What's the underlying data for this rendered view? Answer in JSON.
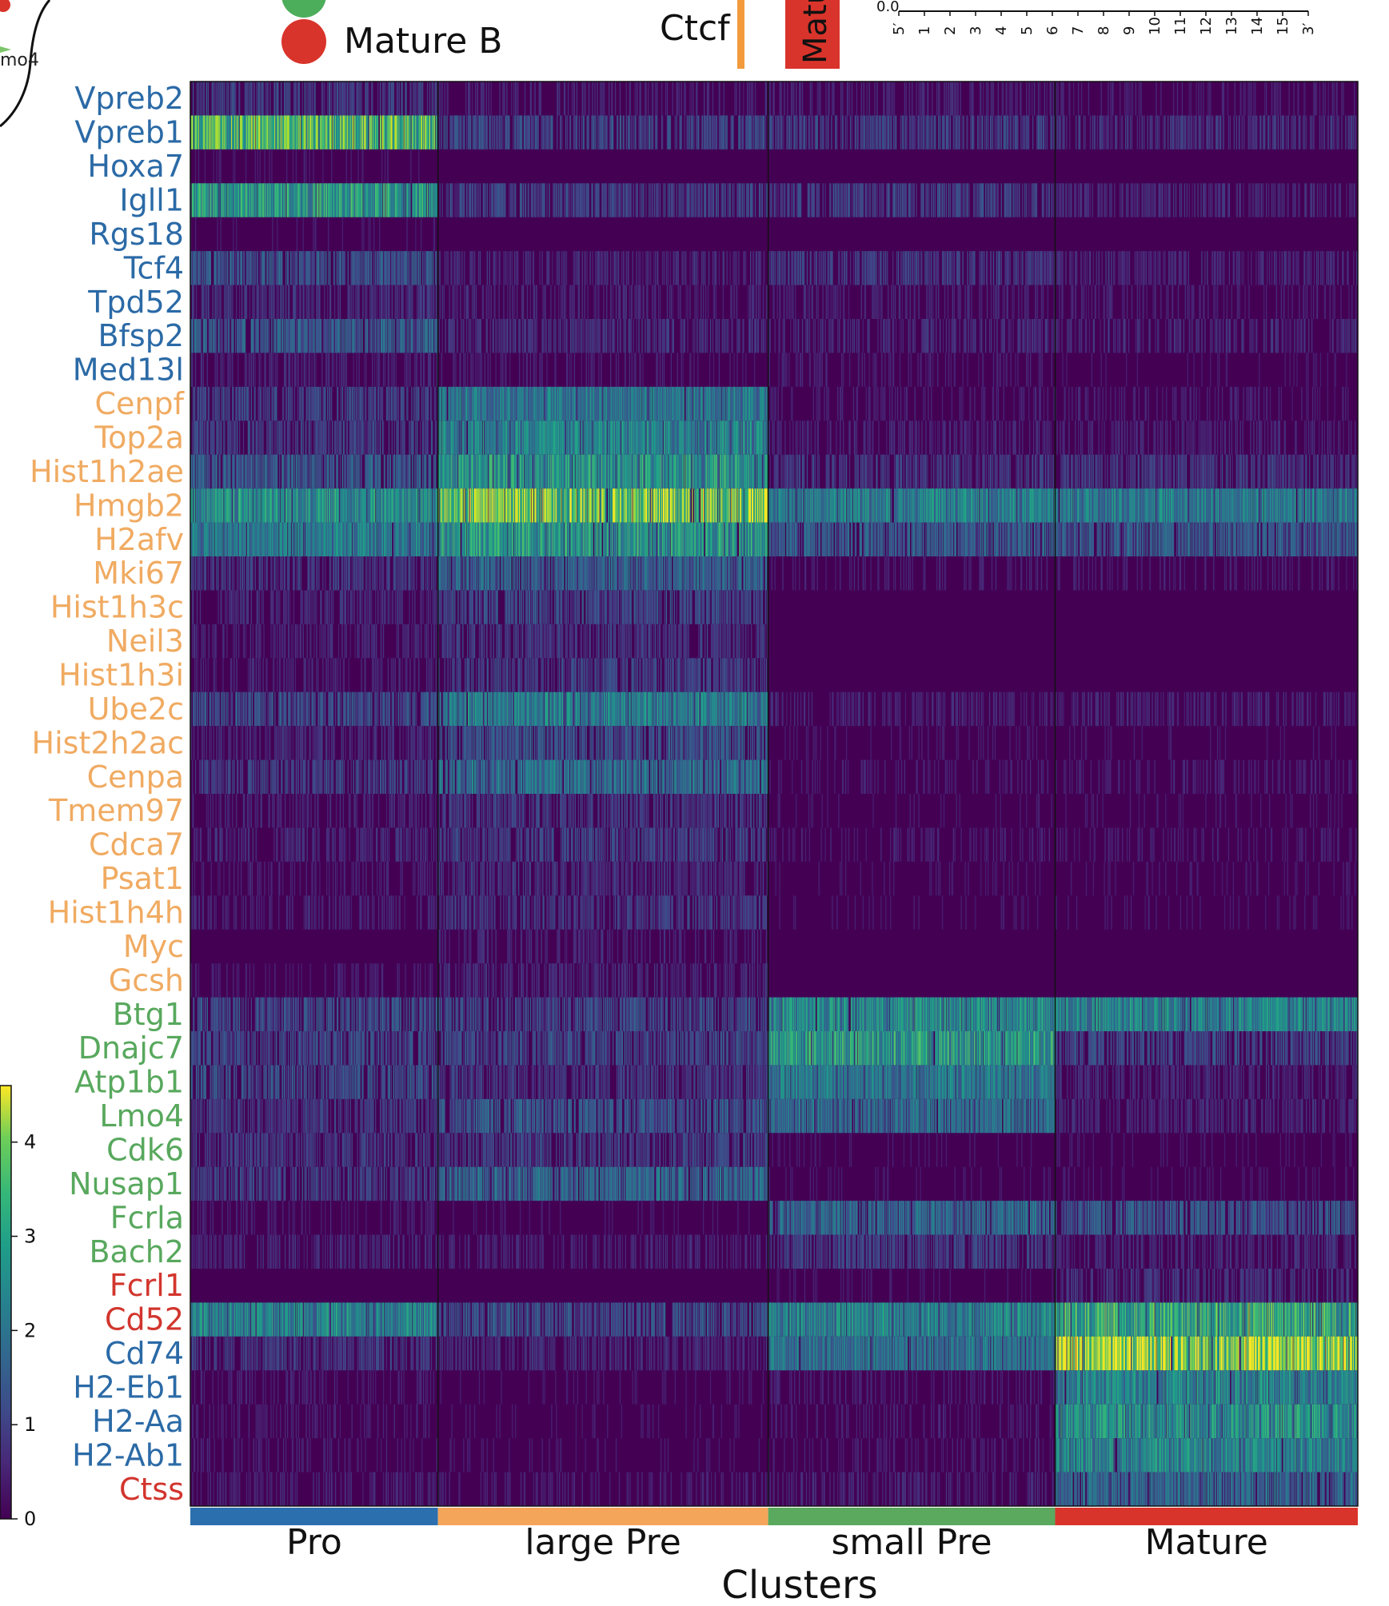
{
  "legend_fragment": {
    "label": "Mature B",
    "partial_label": "mo4",
    "colors": {
      "green": "#4cad5b",
      "red": "#d9342b"
    }
  },
  "motif_fragment": {
    "label": "Ctcf",
    "box_label": "Matu",
    "ytick": "0.0",
    "bar_color": "#f29a3c",
    "box_color": "#d9342b",
    "positions": [
      "5′",
      "1",
      "2",
      "3",
      "4",
      "5",
      "6",
      "7",
      "8",
      "9",
      "10",
      "11",
      "12",
      "13",
      "14",
      "15",
      "3′"
    ]
  },
  "colors": {
    "pro": "#2c6faf",
    "large_pre": "#f5a55a",
    "small_pre": "#5aa95f",
    "mature": "#d9342b",
    "label_blue": "#2b6aa6",
    "label_orange": "#f0ab62",
    "label_green": "#58a85d",
    "label_red": "#d2352d"
  },
  "chart_data": {
    "type": "heatmap",
    "xlabel": "Clusters",
    "ylabel": "",
    "colormap": "viridis",
    "colorbar": {
      "range": [
        0,
        4.6
      ],
      "ticks": [
        0,
        1,
        2,
        3,
        4
      ]
    },
    "clusters": [
      {
        "name": "Pro",
        "color": "#2c6faf",
        "cells": 315
      },
      {
        "name": "large Pre",
        "color": "#f5a55a",
        "cells": 420
      },
      {
        "name": "small Pre",
        "color": "#5aa95f",
        "cells": 365
      },
      {
        "name": "Mature",
        "color": "#d9342b",
        "cells": 385
      }
    ],
    "genes": [
      {
        "name": "Vpreb2",
        "group": "blue",
        "means": [
          0.9,
          0.5,
          0.5,
          0.4
        ]
      },
      {
        "name": "Vpreb1",
        "group": "blue",
        "means": [
          3.0,
          1.0,
          0.9,
          0.7
        ]
      },
      {
        "name": "Hoxa7",
        "group": "blue",
        "means": [
          0.3,
          0.05,
          0.05,
          0.05
        ]
      },
      {
        "name": "Igll1",
        "group": "blue",
        "means": [
          2.4,
          0.9,
          0.9,
          0.6
        ]
      },
      {
        "name": "Rgs18",
        "group": "blue",
        "means": [
          0.3,
          0.05,
          0.05,
          0.05
        ]
      },
      {
        "name": "Tcf4",
        "group": "blue",
        "means": [
          1.2,
          0.6,
          0.8,
          0.6
        ]
      },
      {
        "name": "Tpd52",
        "group": "blue",
        "means": [
          0.7,
          0.5,
          0.5,
          0.4
        ]
      },
      {
        "name": "Bfsp2",
        "group": "blue",
        "means": [
          1.3,
          0.7,
          0.6,
          0.6
        ]
      },
      {
        "name": "Med13l",
        "group": "blue",
        "means": [
          0.5,
          0.4,
          0.4,
          0.3
        ]
      },
      {
        "name": "Cenpf",
        "group": "orange",
        "means": [
          0.9,
          1.8,
          0.4,
          0.4
        ]
      },
      {
        "name": "Top2a",
        "group": "orange",
        "means": [
          0.9,
          2.0,
          0.5,
          0.5
        ]
      },
      {
        "name": "Hist1h2ae",
        "group": "orange",
        "means": [
          1.3,
          2.3,
          0.8,
          0.8
        ]
      },
      {
        "name": "Hmgb2",
        "group": "orange",
        "means": [
          2.2,
          3.5,
          1.9,
          1.9
        ]
      },
      {
        "name": "H2afv",
        "group": "orange",
        "means": [
          1.8,
          2.3,
          1.3,
          1.3
        ]
      },
      {
        "name": "Mki67",
        "group": "orange",
        "means": [
          0.8,
          1.4,
          0.4,
          0.4
        ]
      },
      {
        "name": "Hist1h3c",
        "group": "orange",
        "means": [
          0.6,
          1.0,
          0.2,
          0.2
        ]
      },
      {
        "name": "Neil3",
        "group": "orange",
        "means": [
          0.5,
          0.8,
          0.1,
          0.1
        ]
      },
      {
        "name": "Hist1h3i",
        "group": "orange",
        "means": [
          0.5,
          0.9,
          0.1,
          0.1
        ]
      },
      {
        "name": "Ube2c",
        "group": "orange",
        "means": [
          1.1,
          1.9,
          0.5,
          0.5
        ]
      },
      {
        "name": "Hist2h2ac",
        "group": "orange",
        "means": [
          0.6,
          1.2,
          0.3,
          0.3
        ]
      },
      {
        "name": "Cenpa",
        "group": "orange",
        "means": [
          0.9,
          1.6,
          0.4,
          0.4
        ]
      },
      {
        "name": "Tmem97",
        "group": "orange",
        "means": [
          0.5,
          0.8,
          0.3,
          0.3
        ]
      },
      {
        "name": "Cdca7",
        "group": "orange",
        "means": [
          0.6,
          0.9,
          0.4,
          0.4
        ]
      },
      {
        "name": "Psat1",
        "group": "orange",
        "means": [
          0.4,
          0.7,
          0.3,
          0.3
        ]
      },
      {
        "name": "Hist1h4h",
        "group": "orange",
        "means": [
          0.5,
          0.8,
          0.3,
          0.3
        ]
      },
      {
        "name": "Myc",
        "group": "orange",
        "means": [
          0.2,
          0.5,
          0.1,
          0.1
        ]
      },
      {
        "name": "Gcsh",
        "group": "orange",
        "means": [
          0.4,
          0.6,
          0.2,
          0.2
        ]
      },
      {
        "name": "Btg1",
        "group": "green",
        "means": [
          1.1,
          1.0,
          2.1,
          2.0
        ]
      },
      {
        "name": "Dnajc7",
        "group": "green",
        "means": [
          1.0,
          1.0,
          2.4,
          1.0
        ]
      },
      {
        "name": "Atp1b1",
        "group": "green",
        "means": [
          1.1,
          0.8,
          1.8,
          0.6
        ]
      },
      {
        "name": "Lmo4",
        "group": "green",
        "means": [
          0.8,
          1.2,
          1.6,
          0.6
        ]
      },
      {
        "name": "Cdk6",
        "group": "green",
        "means": [
          0.8,
          0.9,
          0.3,
          0.3
        ]
      },
      {
        "name": "Nusap1",
        "group": "green",
        "means": [
          0.9,
          1.5,
          0.3,
          0.3
        ]
      },
      {
        "name": "Fcrla",
        "group": "green",
        "means": [
          0.4,
          0.3,
          1.5,
          1.2
        ]
      },
      {
        "name": "Bach2",
        "group": "green",
        "means": [
          0.6,
          0.5,
          0.9,
          0.6
        ]
      },
      {
        "name": "Fcrl1",
        "group": "red",
        "means": [
          0.1,
          0.1,
          0.3,
          0.7
        ]
      },
      {
        "name": "Cd52",
        "group": "red",
        "means": [
          2.0,
          1.1,
          2.0,
          2.7
        ]
      },
      {
        "name": "Cd74",
        "group": "blue",
        "means": [
          0.8,
          0.6,
          1.7,
          3.7
        ]
      },
      {
        "name": "H2-Eb1",
        "group": "blue",
        "means": [
          0.4,
          0.3,
          0.4,
          2.0
        ]
      },
      {
        "name": "H2-Aa",
        "group": "blue",
        "means": [
          0.4,
          0.3,
          0.4,
          2.2
        ]
      },
      {
        "name": "H2-Ab1",
        "group": "blue",
        "means": [
          0.4,
          0.3,
          0.4,
          2.0
        ]
      },
      {
        "name": "Ctss",
        "group": "red",
        "means": [
          0.5,
          0.4,
          0.5,
          1.5
        ]
      }
    ]
  }
}
